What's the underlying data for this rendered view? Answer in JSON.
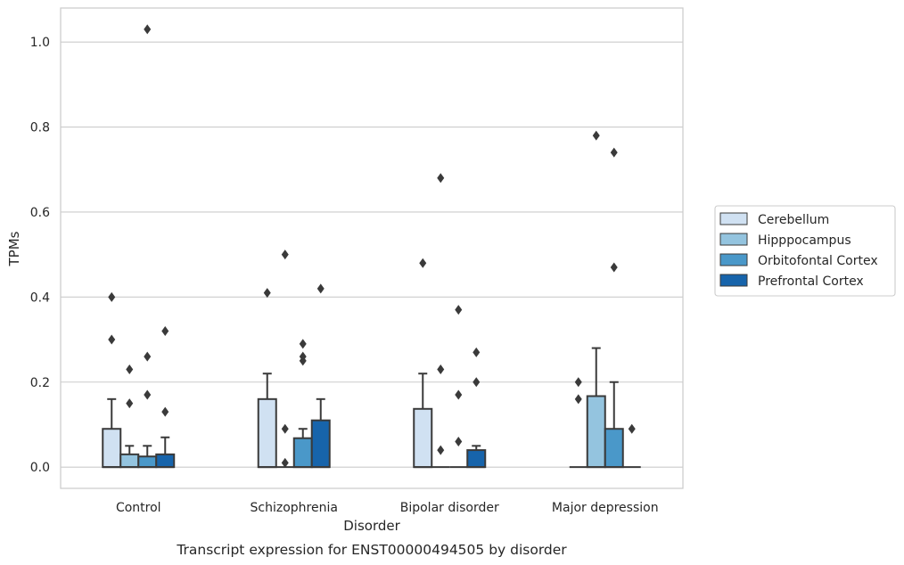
{
  "chart_data": {
    "type": "box",
    "title": "Transcript expression for ENST00000494505 by disorder",
    "xlabel": "Disorder",
    "ylabel": "TPMs",
    "ylim": [
      -0.05,
      1.08
    ],
    "yticks": [
      0.0,
      0.2,
      0.4,
      0.6,
      0.8,
      1.0
    ],
    "grid": "horizontal",
    "legend_placement": "right",
    "categories": [
      "Control",
      "Schizophrenia",
      "Bipolar disorder",
      "Major depression"
    ],
    "series": [
      {
        "name": "Cerebellum",
        "color": "#d0e1f2",
        "boxes": [
          {
            "q1": 0.0,
            "median": 0.0,
            "q3": 0.09,
            "whisker_low": 0.0,
            "whisker_high": 0.16,
            "outliers": [
              0.3,
              0.4
            ]
          },
          {
            "q1": 0.0,
            "median": 0.0,
            "q3": 0.16,
            "whisker_low": 0.0,
            "whisker_high": 0.22,
            "outliers": [
              0.41
            ]
          },
          {
            "q1": 0.0,
            "median": 0.0,
            "q3": 0.137,
            "whisker_low": 0.0,
            "whisker_high": 0.22,
            "outliers": [
              0.48
            ]
          },
          {
            "q1": 0.0,
            "median": 0.0,
            "q3": 0.0,
            "whisker_low": 0.0,
            "whisker_high": 0.0,
            "outliers": [
              0.16,
              0.2
            ]
          }
        ]
      },
      {
        "name": "Hipppocampus",
        "color": "#94c4df",
        "boxes": [
          {
            "q1": 0.0,
            "median": 0.0,
            "q3": 0.03,
            "whisker_low": 0.0,
            "whisker_high": 0.05,
            "outliers": [
              0.15,
              0.23
            ]
          },
          {
            "q1": 0.0,
            "median": 0.0,
            "q3": 0.0,
            "whisker_low": 0.0,
            "whisker_high": 0.0,
            "outliers": [
              0.01,
              0.09,
              0.5
            ]
          },
          {
            "q1": 0.0,
            "median": 0.0,
            "q3": 0.0,
            "whisker_low": 0.0,
            "whisker_high": 0.0,
            "outliers": [
              0.04,
              0.23,
              0.68
            ]
          },
          {
            "q1": 0.0,
            "median": 0.0,
            "q3": 0.167,
            "whisker_low": 0.0,
            "whisker_high": 0.28,
            "outliers": [
              0.78
            ]
          }
        ]
      },
      {
        "name": "Orbitofontal Cortex",
        "color": "#4a98c9",
        "boxes": [
          {
            "q1": 0.0,
            "median": 0.0,
            "q3": 0.025,
            "whisker_low": 0.0,
            "whisker_high": 0.05,
            "outliers": [
              0.17,
              0.26,
              1.03
            ]
          },
          {
            "q1": 0.0,
            "median": 0.0,
            "q3": 0.068,
            "whisker_low": 0.0,
            "whisker_high": 0.09,
            "outliers": [
              0.25,
              0.26,
              0.29
            ]
          },
          {
            "q1": 0.0,
            "median": 0.0,
            "q3": 0.0,
            "whisker_low": 0.0,
            "whisker_high": 0.0,
            "outliers": [
              0.06,
              0.17,
              0.37
            ]
          },
          {
            "q1": 0.0,
            "median": 0.0,
            "q3": 0.09,
            "whisker_low": 0.0,
            "whisker_high": 0.2,
            "outliers": [
              0.47,
              0.74
            ]
          }
        ]
      },
      {
        "name": "Prefrontal Cortex",
        "color": "#1764ab",
        "boxes": [
          {
            "q1": 0.0,
            "median": 0.0,
            "q3": 0.03,
            "whisker_low": 0.0,
            "whisker_high": 0.07,
            "outliers": [
              0.13,
              0.32
            ]
          },
          {
            "q1": 0.0,
            "median": 0.0,
            "q3": 0.11,
            "whisker_low": 0.0,
            "whisker_high": 0.16,
            "outliers": [
              0.42
            ]
          },
          {
            "q1": 0.0,
            "median": 0.0,
            "q3": 0.04,
            "whisker_low": 0.0,
            "whisker_high": 0.05,
            "outliers": [
              0.2,
              0.27
            ]
          },
          {
            "q1": 0.0,
            "median": 0.0,
            "q3": 0.0,
            "whisker_low": 0.0,
            "whisker_high": 0.0,
            "outliers": [
              0.09
            ]
          }
        ]
      }
    ]
  }
}
